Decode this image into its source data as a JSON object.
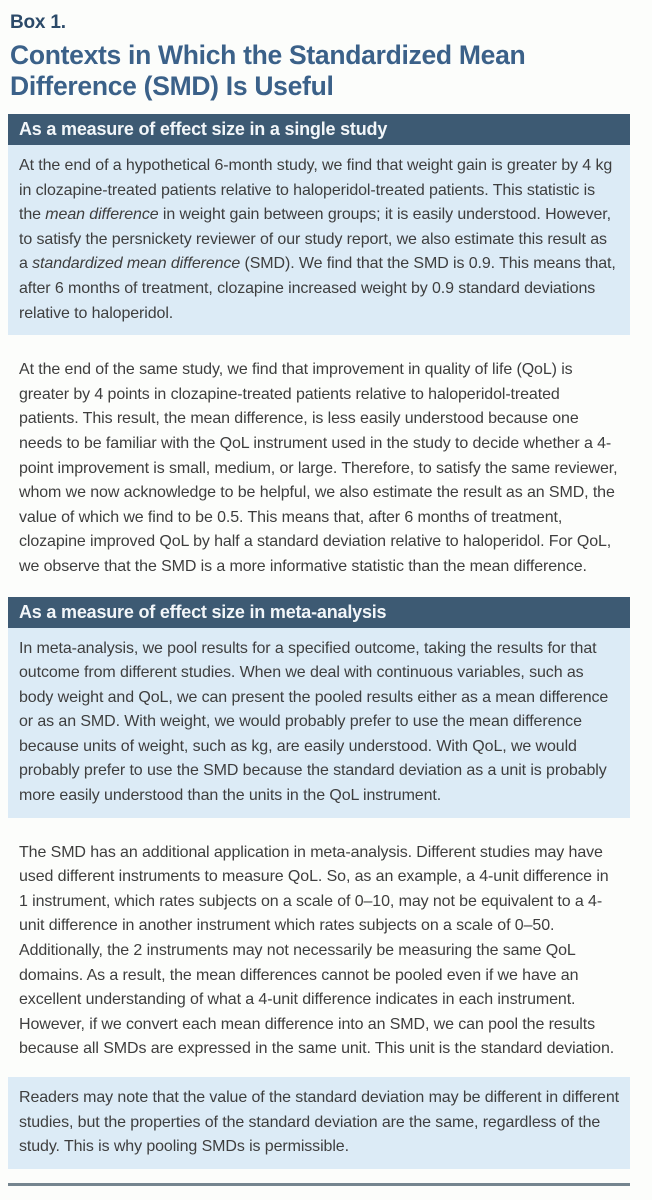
{
  "page": {
    "kicker": "Box 1.",
    "title": "Contexts in Which the Standardized Mean Difference (SMD) Is Useful"
  },
  "colors": {
    "page_bg": "#fcfdfb",
    "header_bar_bg": "#3d5a73",
    "header_bar_text": "#f2f6f9",
    "panel_shaded_bg": "#dcebf6",
    "kicker_color": "#2c4a69",
    "title_color": "#3b6189",
    "body_text": "#3e3e3e",
    "rule_color": "#75858f"
  },
  "sections": [
    {
      "type": "header",
      "label": "As a measure of effect size in a single study"
    },
    {
      "type": "paragraph",
      "shaded": true,
      "segments": [
        {
          "text": "At the end of a hypothetical 6-month study, we find that weight gain is greater by 4 kg in clozapine-treated patients relative to haloperidol-treated patients. This statistic is the "
        },
        {
          "text": "mean difference",
          "italic": true
        },
        {
          "text": " in weight gain between groups; it is easily understood. However, to satisfy the persnickety reviewer of our study report, we also estimate this result as a "
        },
        {
          "text": "standardized mean difference",
          "italic": true
        },
        {
          "text": " (SMD). We find that the SMD is 0.9. This means that, after 6 months of treatment, clozapine increased weight by 0.9 standard deviations relative to haloperidol."
        }
      ]
    },
    {
      "type": "paragraph",
      "shaded": false,
      "segments": [
        {
          "text": "At the end of the same study, we find that improvement in quality of life (QoL) is greater by 4 points in clozapine-treated patients relative to haloperidol-treated patients. This result, the mean difference, is less easily understood because one needs to be familiar with the QoL instrument used in the study to decide whether a 4-point improvement is small, medium, or large. Therefore, to satisfy the same reviewer, whom we now acknowledge to be helpful, we also estimate the result as an SMD, the value of which we find to be 0.5. This means that, after 6 months of treatment, clozapine improved QoL by half a standard deviation relative to haloperidol. For QoL, we observe that the SMD is a more informative statistic than the mean difference."
        }
      ]
    },
    {
      "type": "header",
      "label": "As a measure of effect size in meta-analysis"
    },
    {
      "type": "paragraph",
      "shaded": true,
      "segments": [
        {
          "text": "In meta-analysis, we pool results for a specified outcome, taking the results for that outcome from different studies. When we deal with continuous variables, such as body weight and QoL, we can present the pooled results either as a mean difference or as an SMD. With weight, we would probably prefer to use the mean difference because units of weight, such as kg, are easily understood. With QoL, we would probably prefer to use the SMD because the standard deviation as a unit is probably more easily understood than the units in the QoL instrument."
        }
      ]
    },
    {
      "type": "paragraph",
      "shaded": false,
      "segments": [
        {
          "text": "The SMD has an additional application in meta-analysis. Different studies may have used different instruments to measure QoL. So, as an example, a 4-unit difference in 1 instrument, which rates subjects on a scale of 0–10, may not be equivalent to a 4-unit difference in another instrument which rates subjects on a scale of 0–50. Additionally, the 2 instruments may not necessarily be measuring the same QoL domains. As a result, the mean differences cannot be pooled even if we have an excellent understanding of what a 4-unit difference indicates in each instrument. However, if we convert each mean difference into an SMD, we can pool the results because all SMDs are expressed in the same unit. This unit is the standard deviation."
        }
      ]
    },
    {
      "type": "paragraph",
      "shaded": true,
      "segments": [
        {
          "text": "Readers may note that the value of the standard deviation may be different in different studies, but the properties of the standard deviation are the same, regardless of the study. This is why pooling SMDs is permissible."
        }
      ]
    }
  ]
}
